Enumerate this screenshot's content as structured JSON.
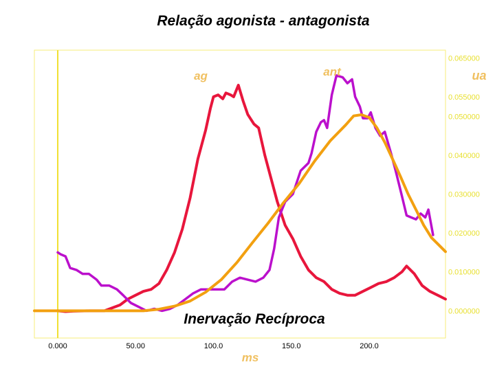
{
  "colors": {
    "frame": "#f7ee7a",
    "y_axis_line": "#f0e030",
    "right_ticks": "#e8e030",
    "ag": "#e8163c",
    "antagonist": "#bb10cc",
    "envelope": "#f2a010",
    "series_label": "#f0c060",
    "axis_title": "#f0c060",
    "text": "#000000"
  },
  "chart_data": {
    "type": "line",
    "title": "Relação agonista - antagonista",
    "annotation": "Inervação Recíproca",
    "xlabel": "ms",
    "ylabel": "ua",
    "xlim": [
      -15,
      249
    ],
    "ylim": [
      -0.007,
      0.067
    ],
    "x_ticks": [
      "0.000",
      "50.00",
      "100.0",
      "150.0",
      "200.0"
    ],
    "x_tick_values": [
      0,
      50,
      100,
      150,
      200
    ],
    "y_ticks": [
      "0.000000",
      "0.010000",
      "0.020000",
      "0.030000",
      "0.040000",
      "0.050000",
      "0.055000",
      "0.065000"
    ],
    "y_tick_values": [
      0.0,
      0.01,
      0.02,
      0.03,
      0.04,
      0.05,
      0.055,
      0.065
    ],
    "grid": false,
    "series": [
      {
        "name": "ag",
        "color_key": "ag",
        "points": [
          [
            0,
            0.0
          ],
          [
            5,
            -0.0002
          ],
          [
            10,
            -0.0001
          ],
          [
            20,
            0.0
          ],
          [
            30,
            0.0
          ],
          [
            40,
            0.0015
          ],
          [
            45,
            0.003
          ],
          [
            50,
            0.004
          ],
          [
            55,
            0.005
          ],
          [
            60,
            0.0055
          ],
          [
            65,
            0.007
          ],
          [
            70,
            0.0105
          ],
          [
            75,
            0.015
          ],
          [
            80,
            0.021
          ],
          [
            85,
            0.029
          ],
          [
            90,
            0.039
          ],
          [
            95,
            0.0465
          ],
          [
            98,
            0.052
          ],
          [
            100,
            0.055
          ],
          [
            103,
            0.0555
          ],
          [
            106,
            0.0545
          ],
          [
            108,
            0.056
          ],
          [
            111,
            0.0555
          ],
          [
            113,
            0.055
          ],
          [
            116,
            0.058
          ],
          [
            119,
            0.054
          ],
          [
            122,
            0.0505
          ],
          [
            126,
            0.048
          ],
          [
            129,
            0.047
          ],
          [
            133,
            0.04
          ],
          [
            137,
            0.034
          ],
          [
            141,
            0.028
          ],
          [
            146,
            0.022
          ],
          [
            151,
            0.0185
          ],
          [
            156,
            0.014
          ],
          [
            161,
            0.0105
          ],
          [
            166,
            0.0085
          ],
          [
            171,
            0.0075
          ],
          [
            176,
            0.0055
          ],
          [
            181,
            0.0045
          ],
          [
            186,
            0.004
          ],
          [
            191,
            0.004
          ],
          [
            196,
            0.005
          ],
          [
            201,
            0.006
          ],
          [
            206,
            0.007
          ],
          [
            211,
            0.0075
          ],
          [
            216,
            0.0085
          ],
          [
            221,
            0.01
          ],
          [
            224,
            0.0115
          ],
          [
            229,
            0.0095
          ],
          [
            234,
            0.0065
          ],
          [
            239,
            0.005
          ],
          [
            244,
            0.004
          ],
          [
            249,
            0.003
          ]
        ]
      },
      {
        "name": "ant",
        "color_key": "antagonist",
        "points": [
          [
            0,
            0.015
          ],
          [
            2,
            0.0145
          ],
          [
            5,
            0.014
          ],
          [
            8,
            0.011
          ],
          [
            12,
            0.0105
          ],
          [
            16,
            0.0095
          ],
          [
            20,
            0.0095
          ],
          [
            25,
            0.008
          ],
          [
            28,
            0.0065
          ],
          [
            33,
            0.0065
          ],
          [
            38,
            0.0055
          ],
          [
            42,
            0.004
          ],
          [
            47,
            0.002
          ],
          [
            52,
            0.001
          ],
          [
            57,
            0.0
          ],
          [
            62,
            0.0005
          ],
          [
            67,
            0.0
          ],
          [
            72,
            0.0005
          ],
          [
            77,
            0.0015
          ],
          [
            82,
            0.003
          ],
          [
            87,
            0.0045
          ],
          [
            92,
            0.0055
          ],
          [
            97,
            0.0055
          ],
          [
            102,
            0.0055
          ],
          [
            107,
            0.0055
          ],
          [
            112,
            0.0075
          ],
          [
            117,
            0.0085
          ],
          [
            122,
            0.008
          ],
          [
            127,
            0.0075
          ],
          [
            132,
            0.0085
          ],
          [
            136,
            0.0105
          ],
          [
            139,
            0.016
          ],
          [
            142,
            0.024
          ],
          [
            146,
            0.028
          ],
          [
            151,
            0.03
          ],
          [
            156,
            0.036
          ],
          [
            161,
            0.038
          ],
          [
            163,
            0.0405
          ],
          [
            166,
            0.046
          ],
          [
            169,
            0.0485
          ],
          [
            171,
            0.049
          ],
          [
            173,
            0.047
          ],
          [
            176,
            0.0555
          ],
          [
            179,
            0.0605
          ],
          [
            183,
            0.06
          ],
          [
            186,
            0.0585
          ],
          [
            189,
            0.0595
          ],
          [
            191,
            0.055
          ],
          [
            194,
            0.0525
          ],
          [
            196,
            0.0495
          ],
          [
            199,
            0.0495
          ],
          [
            201,
            0.051
          ],
          [
            204,
            0.047
          ],
          [
            207,
            0.045
          ],
          [
            210,
            0.046
          ],
          [
            214,
            0.0405
          ],
          [
            217,
            0.036
          ],
          [
            221,
            0.0295
          ],
          [
            224,
            0.0245
          ],
          [
            227,
            0.024
          ],
          [
            230,
            0.0235
          ],
          [
            233,
            0.025
          ],
          [
            236,
            0.024
          ],
          [
            238,
            0.026
          ],
          [
            241,
            0.0195
          ]
        ]
      },
      {
        "name": "",
        "color_key": "envelope",
        "points": [
          [
            -15,
            0.0
          ],
          [
            0,
            0.0
          ],
          [
            20,
            0.0
          ],
          [
            40,
            0.0
          ],
          [
            55,
            0.0
          ],
          [
            65,
            0.0004
          ],
          [
            75,
            0.0012
          ],
          [
            85,
            0.0025
          ],
          [
            95,
            0.0048
          ],
          [
            105,
            0.008
          ],
          [
            115,
            0.0124
          ],
          [
            125,
            0.0175
          ],
          [
            135,
            0.0225
          ],
          [
            145,
            0.0278
          ],
          [
            155,
            0.0327
          ],
          [
            165,
            0.0385
          ],
          [
            175,
            0.0437
          ],
          [
            185,
            0.0478
          ],
          [
            190,
            0.0501
          ],
          [
            195,
            0.0504
          ],
          [
            200,
            0.0497
          ],
          [
            205,
            0.047
          ],
          [
            210,
            0.0433
          ],
          [
            215,
            0.039
          ],
          [
            220,
            0.0346
          ],
          [
            225,
            0.03
          ],
          [
            230,
            0.026
          ],
          [
            235,
            0.022
          ],
          [
            240,
            0.0188
          ],
          [
            245,
            0.0168
          ],
          [
            249,
            0.0152
          ]
        ]
      }
    ]
  }
}
